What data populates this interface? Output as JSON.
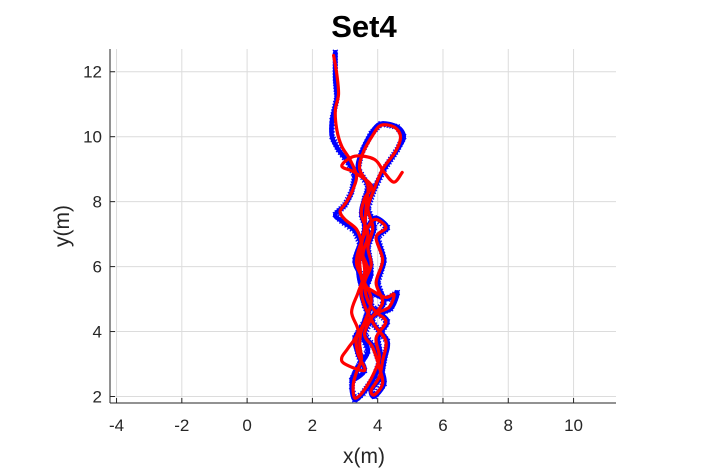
{
  "chart_data": {
    "type": "line",
    "title": "Set4",
    "xlabel": "x(m)",
    "ylabel": "y(m)",
    "xlim": [
      -4.2,
      11.3
    ],
    "ylim": [
      1.8,
      12.7
    ],
    "xticks": [
      -4,
      -2,
      0,
      2,
      4,
      6,
      8,
      10
    ],
    "yticks": [
      2,
      4,
      6,
      8,
      10,
      12
    ],
    "x_tick_labels": [
      "-4",
      "-2",
      "0",
      "2",
      "4",
      "6",
      "8",
      "10"
    ],
    "y_tick_labels": [
      "2",
      "4",
      "6",
      "8",
      "10",
      "12"
    ],
    "grid": true,
    "series": [
      {
        "color": "#0000ff",
        "marker": "x",
        "points": [
          [
            2.7,
            12.6
          ],
          [
            2.7,
            11.8
          ],
          [
            2.75,
            11.2
          ],
          [
            2.6,
            10.5
          ],
          [
            2.6,
            10.0
          ],
          [
            2.8,
            9.6
          ],
          [
            3.1,
            9.2
          ],
          [
            3.3,
            8.8
          ],
          [
            3.2,
            8.3
          ],
          [
            3.0,
            7.9
          ],
          [
            2.7,
            7.6
          ],
          [
            2.9,
            7.4
          ],
          [
            3.3,
            7.1
          ],
          [
            3.5,
            6.6
          ],
          [
            3.4,
            6.0
          ],
          [
            3.5,
            5.4
          ],
          [
            3.8,
            5.2
          ],
          [
            4.3,
            5.0
          ],
          [
            4.6,
            5.2
          ],
          [
            4.4,
            4.7
          ],
          [
            3.9,
            4.5
          ],
          [
            3.5,
            4.1
          ],
          [
            3.4,
            3.6
          ],
          [
            3.5,
            3.1
          ],
          [
            3.3,
            2.7
          ],
          [
            3.2,
            2.3
          ],
          [
            3.3,
            1.9
          ],
          [
            3.55,
            2.1
          ],
          [
            3.9,
            2.6
          ],
          [
            4.1,
            3.2
          ],
          [
            4.0,
            3.8
          ],
          [
            4.3,
            4.3
          ],
          [
            4.0,
            4.6
          ],
          [
            3.7,
            4.9
          ],
          [
            3.6,
            5.5
          ],
          [
            3.8,
            6.0
          ],
          [
            3.7,
            6.6
          ],
          [
            3.9,
            7.2
          ],
          [
            3.7,
            7.8
          ],
          [
            3.9,
            8.4
          ],
          [
            4.2,
            9.0
          ],
          [
            4.6,
            9.6
          ],
          [
            4.8,
            10.0
          ],
          [
            4.6,
            10.3
          ],
          [
            4.1,
            10.4
          ],
          [
            3.8,
            10.1
          ],
          [
            3.5,
            9.5
          ],
          [
            3.4,
            9.0
          ],
          [
            3.7,
            8.5
          ],
          [
            3.6,
            7.9
          ],
          [
            3.6,
            7.2
          ],
          [
            3.5,
            6.5
          ],
          [
            3.7,
            5.9
          ],
          [
            3.5,
            5.3
          ],
          [
            3.6,
            4.8
          ],
          [
            3.9,
            4.2
          ],
          [
            4.3,
            3.7
          ],
          [
            4.2,
            3.1
          ],
          [
            4.1,
            2.6
          ],
          [
            3.8,
            2.2
          ],
          [
            3.9,
            2.0
          ],
          [
            4.2,
            2.4
          ],
          [
            4.1,
            2.9
          ],
          [
            3.9,
            3.5
          ],
          [
            3.6,
            3.9
          ],
          [
            3.8,
            4.4
          ],
          [
            4.2,
            4.9
          ],
          [
            4.0,
            5.5
          ],
          [
            4.2,
            6.2
          ],
          [
            4.0,
            6.9
          ],
          [
            4.3,
            7.2
          ],
          [
            3.9,
            7.5
          ],
          [
            3.6,
            7.0
          ],
          [
            3.3,
            6.2
          ],
          [
            3.5,
            5.7
          ],
          [
            3.8,
            5.0
          ],
          [
            3.6,
            4.3
          ],
          [
            3.3,
            3.8
          ],
          [
            3.4,
            3.3
          ],
          [
            3.6,
            2.8
          ],
          [
            3.2,
            2.5
          ],
          [
            3.4,
            2.9
          ],
          [
            3.7,
            3.4
          ],
          [
            3.5,
            4.0
          ],
          [
            3.7,
            4.6
          ],
          [
            3.6,
            5.2
          ],
          [
            3.8,
            5.8
          ],
          [
            3.6,
            6.4
          ],
          [
            3.7,
            7.0
          ],
          [
            3.5,
            7.6
          ],
          [
            3.6,
            8.1
          ],
          [
            3.8,
            8.5
          ]
        ]
      },
      {
        "color": "#ff0000",
        "marker": "none",
        "points": [
          [
            2.65,
            12.5
          ],
          [
            2.75,
            11.9
          ],
          [
            2.8,
            11.3
          ],
          [
            2.7,
            10.8
          ],
          [
            2.75,
            10.2
          ],
          [
            2.9,
            9.7
          ],
          [
            3.15,
            9.3
          ],
          [
            3.35,
            8.8
          ],
          [
            3.25,
            8.4
          ],
          [
            3.05,
            8.0
          ],
          [
            2.85,
            7.7
          ],
          [
            3.0,
            7.45
          ],
          [
            3.35,
            7.15
          ],
          [
            3.5,
            6.7
          ],
          [
            3.45,
            6.1
          ],
          [
            3.55,
            5.5
          ],
          [
            3.85,
            5.25
          ],
          [
            4.25,
            5.05
          ],
          [
            4.5,
            5.15
          ],
          [
            4.35,
            4.75
          ],
          [
            3.95,
            4.55
          ],
          [
            3.55,
            4.15
          ],
          [
            3.45,
            3.65
          ],
          [
            3.5,
            3.15
          ],
          [
            3.35,
            2.75
          ],
          [
            3.25,
            2.35
          ],
          [
            3.3,
            1.95
          ],
          [
            3.55,
            2.15
          ],
          [
            3.85,
            2.65
          ],
          [
            4.05,
            3.2
          ],
          [
            3.95,
            3.8
          ],
          [
            4.25,
            4.3
          ],
          [
            3.95,
            4.6
          ],
          [
            3.7,
            4.95
          ],
          [
            3.6,
            5.5
          ],
          [
            3.8,
            6.05
          ],
          [
            3.7,
            6.6
          ],
          [
            3.85,
            7.2
          ],
          [
            3.7,
            7.8
          ],
          [
            3.9,
            8.4
          ],
          [
            4.15,
            9.0
          ],
          [
            4.55,
            9.55
          ],
          [
            4.7,
            10.0
          ],
          [
            4.5,
            10.3
          ],
          [
            4.1,
            10.35
          ],
          [
            3.85,
            10.05
          ],
          [
            3.55,
            9.5
          ],
          [
            3.45,
            9.0
          ],
          [
            3.7,
            8.5
          ],
          [
            3.65,
            7.9
          ],
          [
            3.6,
            7.2
          ],
          [
            3.5,
            6.5
          ],
          [
            3.7,
            5.9
          ],
          [
            3.5,
            5.3
          ],
          [
            3.6,
            4.8
          ],
          [
            3.9,
            4.2
          ],
          [
            4.25,
            3.7
          ],
          [
            4.15,
            3.1
          ],
          [
            4.05,
            2.6
          ],
          [
            3.8,
            2.2
          ],
          [
            3.9,
            2.05
          ],
          [
            4.15,
            2.4
          ],
          [
            4.05,
            2.9
          ],
          [
            3.85,
            3.5
          ],
          [
            3.6,
            3.9
          ],
          [
            3.8,
            4.4
          ],
          [
            4.15,
            4.9
          ],
          [
            3.95,
            5.5
          ],
          [
            4.15,
            6.2
          ],
          [
            3.95,
            6.9
          ],
          [
            4.25,
            7.2
          ],
          [
            3.9,
            7.45
          ],
          [
            3.6,
            7.0
          ],
          [
            3.35,
            6.2
          ],
          [
            3.5,
            5.7
          ],
          [
            3.8,
            5.0
          ],
          [
            3.6,
            4.3
          ],
          [
            3.35,
            3.8
          ],
          [
            3.4,
            3.3
          ],
          [
            3.6,
            2.8
          ],
          [
            3.0,
            3.0
          ],
          [
            2.9,
            3.2
          ],
          [
            3.1,
            3.5
          ],
          [
            3.4,
            4.0
          ],
          [
            3.2,
            4.6
          ],
          [
            3.4,
            5.2
          ],
          [
            3.6,
            5.8
          ],
          [
            3.55,
            6.4
          ],
          [
            3.7,
            7.0
          ],
          [
            3.5,
            7.6
          ],
          [
            3.6,
            8.1
          ],
          [
            3.8,
            8.5
          ],
          [
            3.3,
            8.9
          ],
          [
            2.9,
            9.1
          ],
          [
            3.3,
            9.4
          ],
          [
            3.9,
            9.3
          ],
          [
            4.2,
            8.9
          ],
          [
            4.5,
            8.6
          ],
          [
            4.75,
            8.9
          ]
        ]
      }
    ]
  }
}
